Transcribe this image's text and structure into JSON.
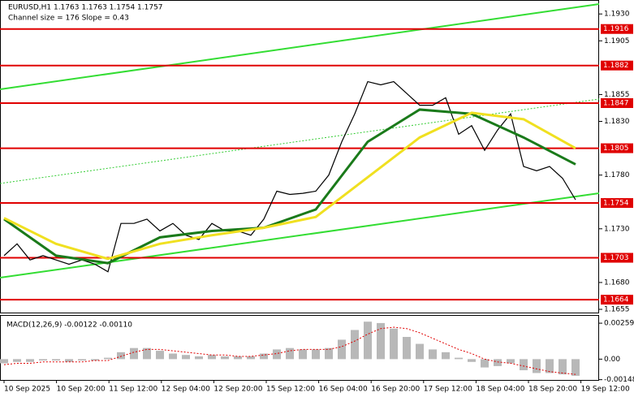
{
  "header": {
    "symbol_line": "EURUSD,H1  1.1763 1.1763 1.1754 1.1757",
    "channel_line": "Channel size = 176 Slope = 0.43"
  },
  "chart_data": {
    "type": "line",
    "ylim": [
      1.1652,
      1.1943
    ],
    "yticks": [
      {
        "value": 1.193,
        "label": "1.1930"
      },
      1.1905,
      1.1855,
      {
        "value": 1.183,
        "label": "1.1830"
      },
      {
        "value": 1.178,
        "label": "1.1780"
      },
      {
        "value": 1.173,
        "label": "1.1730"
      },
      {
        "value": 1.168,
        "label": "1.1680"
      },
      1.1655
    ],
    "series": [
      {
        "color": "#000000",
        "values": [
          1.1705,
          1.1716,
          1.1701,
          1.1705,
          1.1701,
          1.1697,
          1.1701,
          1.1697,
          1.169,
          1.1735,
          1.1735,
          1.1739,
          1.1728,
          1.1735,
          1.1724,
          1.172,
          1.1735,
          1.1728,
          1.1728,
          1.1724,
          1.1739,
          1.1765,
          1.1762,
          1.1763,
          1.1765,
          1.178,
          1.1811,
          1.1837,
          1.1867,
          1.1864,
          1.1867,
          1.1856,
          1.1845,
          1.1845,
          1.1852,
          1.1818,
          1.1826,
          1.1803,
          1.1822,
          1.1837,
          1.1788,
          1.1784,
          1.1788,
          1.1777,
          1.1757
        ]
      },
      {
        "color": "#1a7a1a",
        "values": [
          1.1739,
          1.1705,
          1.1698,
          1.1722,
          1.1728,
          1.1731,
          1.1748,
          1.1811,
          1.1841,
          1.1837,
          1.1815,
          1.179
        ]
      },
      {
        "color": "#f0e020",
        "values": [
          1.174,
          1.1716,
          1.1702,
          1.1716,
          1.1724,
          1.1731,
          1.1741,
          1.1778,
          1.1815,
          1.1838,
          1.1832,
          1.1805
        ]
      }
    ],
    "levels": {
      "color": "#e00000",
      "values": [
        1.1916,
        1.1882,
        1.1847,
        1.1805,
        1.1754,
        1.1703,
        1.1664
      ]
    },
    "x_labels": [
      "10 Sep 2025",
      "10 Sep 20:00",
      "11 Sep 12:00",
      "12 Sep 04:00",
      "12 Sep 20:00",
      "15 Sep 12:00",
      "16 Sep 04:00",
      "16 Sep 20:00",
      "17 Sep 12:00",
      "18 Sep 04:00",
      "18 Sep 20:00",
      "19 Sep 12:00"
    ]
  },
  "macd": {
    "type": "bar",
    "title": "MACD(12,26,9) -0.00122 -0.00110",
    "ylim": [
      -0.0015,
      0.00318
    ],
    "yticks": [
      0.00259,
      {
        "value": 0,
        "label": "0.00"
      },
      -0.00148
    ],
    "histogram": {
      "color": "#b8b8b8",
      "values": [
        -0.0003,
        -0.0002,
        -0.0002,
        -0.0001,
        -0.0001,
        -0.0002,
        -0.0001,
        -0.0001,
        0.0001,
        0.0005,
        0.0008,
        0.0008,
        0.0006,
        0.0004,
        0.0003,
        0.0002,
        0.0003,
        0.0002,
        0.0002,
        0.0002,
        0.0004,
        0.0007,
        0.0008,
        0.0007,
        0.0007,
        0.0008,
        0.0014,
        0.0021,
        0.0027,
        0.0026,
        0.0022,
        0.0016,
        0.0011,
        0.0007,
        0.0005,
        0.0001,
        -0.0002,
        -0.0006,
        -0.0005,
        -0.0003,
        -0.0008,
        -0.001,
        -0.001,
        -0.0011,
        -0.0012
      ]
    },
    "signal": {
      "color": "#e00000",
      "values": [
        -0.0004,
        -0.0003,
        -0.0003,
        -0.0002,
        -0.0002,
        -0.0002,
        -0.0002,
        -0.0001,
        -0.0001,
        0.0002,
        0.0005,
        0.0007,
        0.0007,
        0.0006,
        0.0005,
        0.0004,
        0.0003,
        0.0003,
        0.0002,
        0.0002,
        0.0003,
        0.0004,
        0.0006,
        0.0007,
        0.0007,
        0.0007,
        0.0009,
        0.0013,
        0.0018,
        0.0022,
        0.0023,
        0.0022,
        0.0019,
        0.0015,
        0.0011,
        0.0007,
        0.0004,
        0,
        -0.0002,
        -0.0003,
        -0.0005,
        -0.0007,
        -0.0009,
        -0.001,
        -0.0011
      ]
    }
  }
}
